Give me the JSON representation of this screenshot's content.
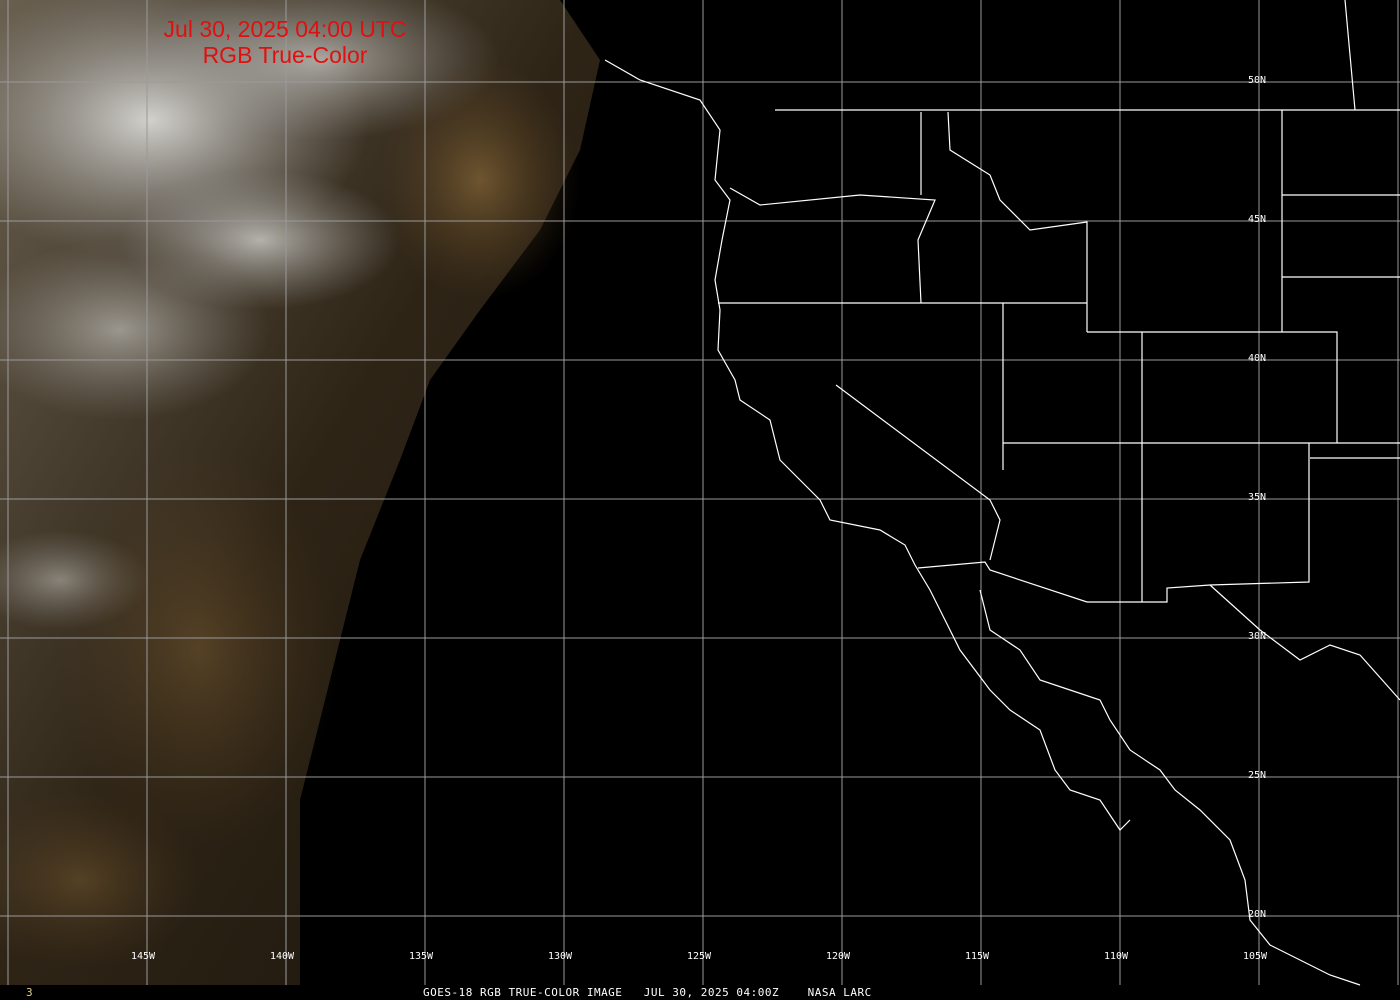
{
  "title": {
    "line1": "Jul 30, 2025 04:00 UTC",
    "line2": "RGB True-Color"
  },
  "footer": {
    "text": "GOES-18 RGB TRUE-COLOR IMAGE   JUL 30, 2025 04:00Z    NASA LARC",
    "frame_number": "3"
  },
  "latitude_labels": [
    "50N",
    "45N",
    "40N",
    "35N",
    "30N",
    "25N",
    "20N"
  ],
  "longitude_labels": [
    "145W",
    "140W",
    "135W",
    "130W",
    "125W",
    "120W",
    "115W",
    "110W",
    "105W"
  ],
  "colors": {
    "title": "#e01010",
    "grid": "#9a9a9a",
    "borders": "#ffffff"
  }
}
